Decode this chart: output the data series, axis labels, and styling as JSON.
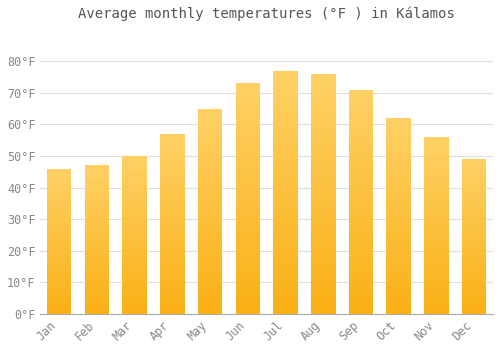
{
  "title": "Average monthly temperatures (°F ) in Kálamos",
  "months": [
    "Jan",
    "Feb",
    "Mar",
    "Apr",
    "May",
    "Jun",
    "Jul",
    "Aug",
    "Sep",
    "Oct",
    "Nov",
    "Dec"
  ],
  "values": [
    46,
    47,
    50,
    57,
    65,
    73,
    77,
    76,
    71,
    62,
    56,
    49
  ],
  "bar_color": "#FBB116",
  "bar_color_light": "#FDD06A",
  "background_color": "#FFFFFF",
  "grid_color": "#DDDDDD",
  "tick_label_color": "#888888",
  "title_color": "#555555",
  "ylim": [
    0,
    90
  ],
  "yticks": [
    0,
    10,
    20,
    30,
    40,
    50,
    60,
    70,
    80
  ],
  "ytick_labels": [
    "0°F",
    "10°F",
    "20°F",
    "30°F",
    "40°F",
    "50°F",
    "60°F",
    "70°F",
    "80°F"
  ],
  "font_family": "monospace",
  "title_fontsize": 10,
  "tick_fontsize": 8.5
}
